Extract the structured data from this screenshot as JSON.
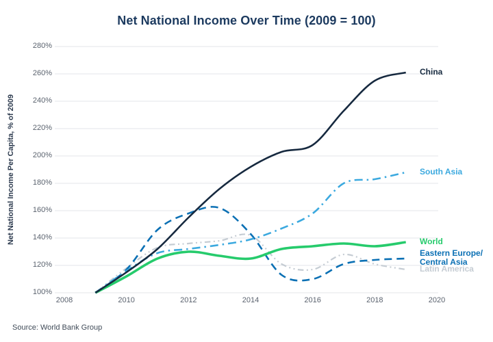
{
  "source": "Source: World Bank Group",
  "chart_data": {
    "type": "line",
    "title": "Net National Income Over Time (2009 = 100)",
    "ylabel": "Net National Income Per Capita, % of 2009",
    "xlabel": "",
    "grid": true,
    "legend_position": "right-end-labels",
    "xlim": [
      2008,
      2020
    ],
    "ylim": [
      100,
      280
    ],
    "x_ticks": [
      2008,
      2010,
      2012,
      2014,
      2016,
      2018,
      2020
    ],
    "y_ticks": [
      100,
      120,
      140,
      160,
      180,
      200,
      220,
      240,
      260,
      280
    ],
    "y_tick_suffix": "%",
    "x": [
      2009,
      2010,
      2011,
      2012,
      2013,
      2014,
      2015,
      2016,
      2017,
      2018,
      2019
    ],
    "series": [
      {
        "name": "China",
        "label_lines": [
          "China"
        ],
        "color": "#16293F",
        "style": "solid",
        "width": 2.6,
        "values": [
          100,
          115,
          132,
          155,
          176,
          192,
          203,
          208,
          233,
          255,
          261
        ]
      },
      {
        "name": "South Asia",
        "label_lines": [
          "South Asia"
        ],
        "color": "#3BA9DF",
        "style": "dashdot",
        "width": 2.6,
        "values": [
          100,
          116,
          129,
          132,
          135,
          139,
          147,
          158,
          180,
          183,
          188
        ]
      },
      {
        "name": "World",
        "label_lines": [
          "World"
        ],
        "color": "#26CB6C",
        "style": "solid",
        "width": 3.6,
        "values": [
          100,
          112,
          125,
          130,
          127,
          125,
          132,
          134,
          136,
          134,
          137
        ]
      },
      {
        "name": "Eastern Europe/Central Asia",
        "label_lines": [
          "Eastern Europe/",
          "Central Asia"
        ],
        "color": "#0B70B4",
        "style": "dashed",
        "width": 2.6,
        "values": [
          100,
          117,
          146,
          158,
          162,
          143,
          113,
          110,
          121,
          124,
          125
        ]
      },
      {
        "name": "Latin America",
        "label_lines": [
          "Latin America"
        ],
        "color": "#C5CCD3",
        "style": "dashdotdot",
        "width": 2.2,
        "values": [
          100,
          118,
          133,
          136,
          138,
          142,
          121,
          117,
          128,
          121,
          117
        ]
      }
    ]
  }
}
